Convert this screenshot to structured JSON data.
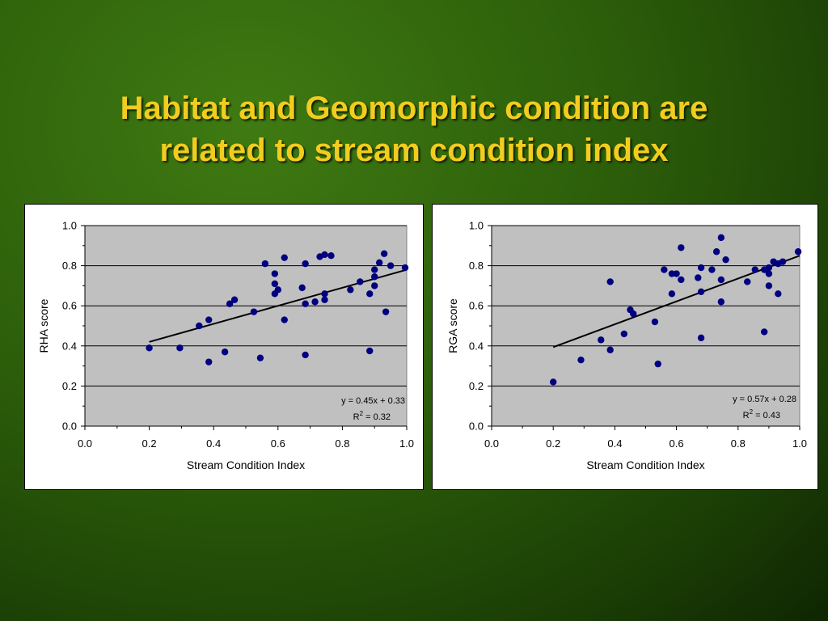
{
  "slide": {
    "title_line1": "Habitat and Geomorphic condition are",
    "title_line2": "related to stream condition index"
  },
  "colors": {
    "background": "#2c5e0a",
    "title": "#f2cc1e",
    "plot_area": "#c0c0c0",
    "points": "#000080",
    "trendline": "#000000"
  },
  "chart_data": [
    {
      "type": "scatter",
      "xlabel": "Stream Condition Index",
      "ylabel": "RHA score",
      "xlim": [
        0,
        1
      ],
      "ylim": [
        0,
        1
      ],
      "x_ticks": [
        "0.0",
        "0.2",
        "0.4",
        "0.6",
        "0.8",
        "1.0"
      ],
      "y_ticks": [
        "0.0",
        "0.2",
        "0.4",
        "0.6",
        "0.8",
        "1.0"
      ],
      "grid": "horizontal",
      "trendline": {
        "slope": 0.45,
        "intercept": 0.33,
        "x_range": [
          0.2,
          1.0
        ]
      },
      "equation": "y = 0.45x + 0.33",
      "r2_prefix": "R",
      "r2_sup": "2",
      "r2_value": " = 0.32",
      "points": [
        [
          0.2,
          0.39
        ],
        [
          0.295,
          0.39
        ],
        [
          0.355,
          0.5
        ],
        [
          0.385,
          0.53
        ],
        [
          0.385,
          0.32
        ],
        [
          0.435,
          0.37
        ],
        [
          0.45,
          0.61
        ],
        [
          0.465,
          0.63
        ],
        [
          0.525,
          0.57
        ],
        [
          0.545,
          0.34
        ],
        [
          0.56,
          0.81
        ],
        [
          0.59,
          0.76
        ],
        [
          0.59,
          0.71
        ],
        [
          0.59,
          0.66
        ],
        [
          0.6,
          0.68
        ],
        [
          0.62,
          0.84
        ],
        [
          0.62,
          0.53
        ],
        [
          0.675,
          0.69
        ],
        [
          0.685,
          0.81
        ],
        [
          0.685,
          0.61
        ],
        [
          0.685,
          0.355
        ],
        [
          0.715,
          0.62
        ],
        [
          0.73,
          0.845
        ],
        [
          0.745,
          0.855
        ],
        [
          0.745,
          0.66
        ],
        [
          0.745,
          0.63
        ],
        [
          0.765,
          0.85
        ],
        [
          0.825,
          0.68
        ],
        [
          0.855,
          0.72
        ],
        [
          0.885,
          0.66
        ],
        [
          0.885,
          0.375
        ],
        [
          0.9,
          0.78
        ],
        [
          0.9,
          0.745
        ],
        [
          0.9,
          0.7
        ],
        [
          0.915,
          0.815
        ],
        [
          0.93,
          0.86
        ],
        [
          0.935,
          0.57
        ],
        [
          0.95,
          0.8
        ],
        [
          0.995,
          0.79
        ]
      ]
    },
    {
      "type": "scatter",
      "xlabel": "Stream Condition Index",
      "ylabel": "RGA score",
      "xlim": [
        0,
        1
      ],
      "ylim": [
        0,
        1
      ],
      "x_ticks": [
        "0.0",
        "0.2",
        "0.4",
        "0.6",
        "0.8",
        "1.0"
      ],
      "y_ticks": [
        "0.0",
        "0.2",
        "0.4",
        "0.6",
        "0.8",
        "1.0"
      ],
      "grid": "horizontal",
      "trendline": {
        "slope": 0.57,
        "intercept": 0.28,
        "x_range": [
          0.2,
          1.0
        ]
      },
      "equation": "y = 0.57x + 0.28",
      "r2_prefix": "R",
      "r2_sup": "2",
      "r2_value": " = 0.43",
      "points": [
        [
          0.2,
          0.22
        ],
        [
          0.29,
          0.33
        ],
        [
          0.355,
          0.43
        ],
        [
          0.385,
          0.72
        ],
        [
          0.385,
          0.38
        ],
        [
          0.43,
          0.46
        ],
        [
          0.45,
          0.58
        ],
        [
          0.46,
          0.56
        ],
        [
          0.53,
          0.52
        ],
        [
          0.54,
          0.31
        ],
        [
          0.56,
          0.78
        ],
        [
          0.585,
          0.76
        ],
        [
          0.585,
          0.66
        ],
        [
          0.6,
          0.76
        ],
        [
          0.615,
          0.89
        ],
        [
          0.615,
          0.73
        ],
        [
          0.67,
          0.74
        ],
        [
          0.68,
          0.79
        ],
        [
          0.68,
          0.67
        ],
        [
          0.68,
          0.44
        ],
        [
          0.715,
          0.78
        ],
        [
          0.73,
          0.87
        ],
        [
          0.745,
          0.94
        ],
        [
          0.745,
          0.73
        ],
        [
          0.745,
          0.62
        ],
        [
          0.76,
          0.83
        ],
        [
          0.83,
          0.72
        ],
        [
          0.855,
          0.78
        ],
        [
          0.885,
          0.78
        ],
        [
          0.885,
          0.47
        ],
        [
          0.9,
          0.79
        ],
        [
          0.9,
          0.76
        ],
        [
          0.9,
          0.7
        ],
        [
          0.915,
          0.82
        ],
        [
          0.93,
          0.81
        ],
        [
          0.93,
          0.66
        ],
        [
          0.945,
          0.82
        ],
        [
          0.995,
          0.87
        ]
      ]
    }
  ]
}
